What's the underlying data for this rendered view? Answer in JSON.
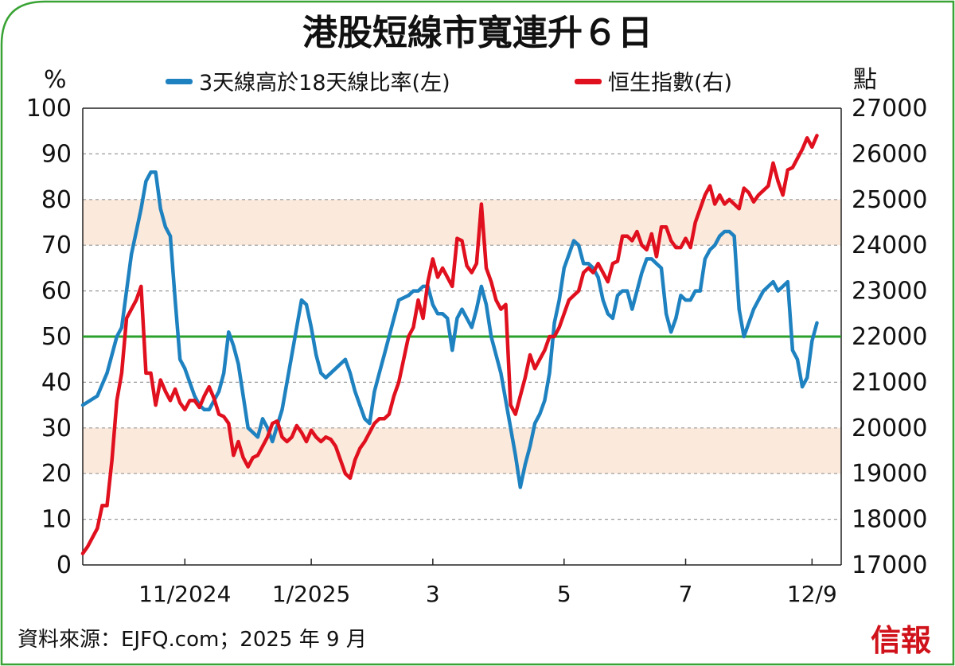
{
  "chart_data": {
    "type": "line",
    "title": "港股短線市寬連升６日",
    "left_axis": {
      "unit": "%",
      "ylim": [
        0,
        100
      ],
      "ticks": [
        "0",
        "10",
        "20",
        "30",
        "40",
        "50",
        "60",
        "70",
        "80",
        "90",
        "100"
      ]
    },
    "right_axis": {
      "unit": "點",
      "ylim": [
        17000,
        27000
      ],
      "ticks": [
        "17000",
        "18000",
        "19000",
        "20000",
        "21000",
        "22000",
        "23000",
        "24000",
        "25000",
        "26000",
        "27000"
      ]
    },
    "x_tick_labels": [
      "11/2024",
      "1/2025",
      "3",
      "5",
      "7",
      "12/9"
    ],
    "legend": {
      "placement": "top",
      "entries": [
        "3天線高於18天線比率(左)",
        "恒生指數(右)"
      ]
    },
    "reference_line": {
      "value": 50,
      "axis": "left",
      "color": "#2ca02c"
    },
    "shaded_bands": [
      {
        "from": 20,
        "to": 30
      },
      {
        "from": 70,
        "to": 80
      }
    ],
    "grid": true,
    "series": [
      {
        "name": "3天線高於18天線比率(左)",
        "axis": "left",
        "color": "#1f82c0",
        "values": [
          [
            0,
            35
          ],
          [
            3,
            37
          ],
          [
            5,
            42
          ],
          [
            7,
            50
          ],
          [
            8,
            52
          ],
          [
            10,
            68
          ],
          [
            12,
            78
          ],
          [
            13,
            84
          ],
          [
            14,
            86
          ],
          [
            15,
            86
          ],
          [
            16,
            78
          ],
          [
            17,
            74
          ],
          [
            18,
            72
          ],
          [
            19,
            58
          ],
          [
            20,
            45
          ],
          [
            21,
            43
          ],
          [
            23,
            37
          ],
          [
            24,
            35
          ],
          [
            25,
            34
          ],
          [
            26,
            34
          ],
          [
            28,
            38
          ],
          [
            29,
            42
          ],
          [
            30,
            51
          ],
          [
            31,
            48
          ],
          [
            32,
            44
          ],
          [
            34,
            30
          ],
          [
            36,
            28
          ],
          [
            37,
            32
          ],
          [
            38,
            30
          ],
          [
            39,
            27
          ],
          [
            41,
            34
          ],
          [
            42,
            40
          ],
          [
            43,
            46
          ],
          [
            44,
            52
          ],
          [
            45,
            58
          ],
          [
            46,
            57
          ],
          [
            47,
            52
          ],
          [
            48,
            46
          ],
          [
            49,
            42
          ],
          [
            50,
            41
          ],
          [
            52,
            43
          ],
          [
            54,
            45
          ],
          [
            55,
            42
          ],
          [
            56,
            38
          ],
          [
            57,
            35
          ],
          [
            58,
            32
          ],
          [
            59,
            31
          ],
          [
            60,
            38
          ],
          [
            61,
            42
          ],
          [
            62,
            46
          ],
          [
            63,
            50
          ],
          [
            64,
            54
          ],
          [
            65,
            58
          ],
          [
            67,
            59
          ],
          [
            68,
            60
          ],
          [
            69,
            60
          ],
          [
            70,
            61
          ],
          [
            71,
            61
          ],
          [
            72,
            57
          ],
          [
            73,
            55
          ],
          [
            74,
            55
          ],
          [
            75,
            54
          ],
          [
            76,
            47
          ],
          [
            77,
            54
          ],
          [
            78,
            56
          ],
          [
            79,
            54
          ],
          [
            80,
            52
          ],
          [
            81,
            56
          ],
          [
            82,
            61
          ],
          [
            83,
            57
          ],
          [
            84,
            50
          ],
          [
            85,
            46
          ],
          [
            86,
            42
          ],
          [
            87,
            36
          ],
          [
            88,
            30
          ],
          [
            89,
            24
          ],
          [
            90,
            17
          ],
          [
            91,
            22
          ],
          [
            92,
            26
          ],
          [
            93,
            31
          ],
          [
            94,
            33
          ],
          [
            95,
            36
          ],
          [
            96,
            42
          ],
          [
            97,
            53
          ],
          [
            98,
            58
          ],
          [
            99,
            65
          ],
          [
            100,
            68
          ],
          [
            101,
            71
          ],
          [
            102,
            70
          ],
          [
            103,
            66
          ],
          [
            104,
            66
          ],
          [
            105,
            65
          ],
          [
            106,
            63
          ],
          [
            107,
            58
          ],
          [
            108,
            55
          ],
          [
            109,
            54
          ],
          [
            110,
            59
          ],
          [
            111,
            60
          ],
          [
            112,
            60
          ],
          [
            113,
            56
          ],
          [
            114,
            60
          ],
          [
            115,
            64
          ],
          [
            116,
            67
          ],
          [
            117,
            67
          ],
          [
            118,
            66
          ],
          [
            119,
            65
          ],
          [
            120,
            55
          ],
          [
            121,
            51
          ],
          [
            122,
            54
          ],
          [
            123,
            59
          ],
          [
            124,
            58
          ],
          [
            125,
            58
          ],
          [
            126,
            60
          ],
          [
            127,
            60
          ],
          [
            128,
            67
          ],
          [
            129,
            69
          ],
          [
            130,
            70
          ],
          [
            131,
            72
          ],
          [
            132,
            73
          ],
          [
            133,
            73
          ],
          [
            134,
            72
          ],
          [
            135,
            56
          ],
          [
            136,
            50
          ],
          [
            137,
            53
          ],
          [
            138,
            56
          ],
          [
            139,
            58
          ],
          [
            140,
            60
          ],
          [
            141,
            61
          ],
          [
            142,
            62
          ],
          [
            143,
            60
          ],
          [
            144,
            61
          ],
          [
            145,
            62
          ],
          [
            146,
            47
          ],
          [
            147,
            45
          ],
          [
            148,
            39
          ],
          [
            149,
            41
          ],
          [
            150,
            49
          ],
          [
            151,
            53
          ]
        ]
      },
      {
        "name": "恒生指數(右)",
        "axis": "right",
        "color": "#e0101e",
        "values": [
          [
            0,
            17250
          ],
          [
            1,
            17400
          ],
          [
            3,
            17800
          ],
          [
            4,
            18300
          ],
          [
            5,
            18300
          ],
          [
            6,
            19300
          ],
          [
            7,
            20600
          ],
          [
            8,
            21200
          ],
          [
            9,
            22400
          ],
          [
            10,
            22600
          ],
          [
            11,
            22800
          ],
          [
            12,
            23100
          ],
          [
            13,
            21200
          ],
          [
            14,
            21200
          ],
          [
            15,
            20500
          ],
          [
            16,
            21050
          ],
          [
            17,
            20800
          ],
          [
            18,
            20600
          ],
          [
            19,
            20850
          ],
          [
            20,
            20550
          ],
          [
            21,
            20400
          ],
          [
            22,
            20600
          ],
          [
            23,
            20600
          ],
          [
            24,
            20450
          ],
          [
            25,
            20700
          ],
          [
            26,
            20900
          ],
          [
            27,
            20650
          ],
          [
            28,
            20300
          ],
          [
            29,
            20250
          ],
          [
            30,
            20100
          ],
          [
            31,
            19400
          ],
          [
            32,
            19700
          ],
          [
            33,
            19350
          ],
          [
            34,
            19150
          ],
          [
            35,
            19350
          ],
          [
            36,
            19400
          ],
          [
            37,
            19600
          ],
          [
            38,
            19800
          ],
          [
            39,
            20100
          ],
          [
            40,
            20150
          ],
          [
            41,
            19800
          ],
          [
            42,
            19700
          ],
          [
            43,
            19800
          ],
          [
            44,
            20050
          ],
          [
            45,
            19900
          ],
          [
            46,
            19700
          ],
          [
            47,
            19950
          ],
          [
            48,
            19800
          ],
          [
            49,
            19700
          ],
          [
            50,
            19800
          ],
          [
            51,
            19750
          ],
          [
            52,
            19600
          ],
          [
            53,
            19300
          ],
          [
            54,
            19000
          ],
          [
            55,
            18900
          ],
          [
            56,
            19300
          ],
          [
            57,
            19550
          ],
          [
            58,
            19700
          ],
          [
            59,
            19900
          ],
          [
            60,
            20100
          ],
          [
            61,
            20200
          ],
          [
            62,
            20200
          ],
          [
            63,
            20300
          ],
          [
            64,
            20700
          ],
          [
            65,
            21000
          ],
          [
            66,
            21500
          ],
          [
            67,
            22000
          ],
          [
            68,
            22200
          ],
          [
            69,
            22800
          ],
          [
            70,
            22400
          ],
          [
            71,
            23200
          ],
          [
            72,
            23700
          ],
          [
            73,
            23300
          ],
          [
            74,
            23500
          ],
          [
            75,
            23300
          ],
          [
            76,
            23100
          ],
          [
            77,
            24150
          ],
          [
            78,
            24100
          ],
          [
            79,
            23550
          ],
          [
            80,
            23400
          ],
          [
            81,
            23600
          ],
          [
            82,
            24900
          ],
          [
            83,
            23500
          ],
          [
            84,
            23200
          ],
          [
            85,
            22800
          ],
          [
            86,
            22600
          ],
          [
            87,
            22700
          ],
          [
            88,
            20500
          ],
          [
            89,
            20300
          ],
          [
            90,
            20700
          ],
          [
            91,
            21100
          ],
          [
            92,
            21600
          ],
          [
            93,
            21300
          ],
          [
            94,
            21500
          ],
          [
            95,
            21700
          ],
          [
            96,
            22000
          ],
          [
            97,
            22000
          ],
          [
            98,
            22200
          ],
          [
            99,
            22500
          ],
          [
            100,
            22800
          ],
          [
            101,
            22900
          ],
          [
            102,
            23000
          ],
          [
            103,
            23400
          ],
          [
            104,
            23500
          ],
          [
            105,
            23400
          ],
          [
            106,
            23600
          ],
          [
            107,
            23400
          ],
          [
            108,
            23200
          ],
          [
            109,
            23600
          ],
          [
            110,
            23650
          ],
          [
            111,
            24200
          ],
          [
            112,
            24200
          ],
          [
            113,
            24100
          ],
          [
            114,
            24300
          ],
          [
            115,
            24000
          ],
          [
            116,
            23900
          ],
          [
            117,
            24250
          ],
          [
            118,
            23750
          ],
          [
            119,
            24400
          ],
          [
            120,
            24400
          ],
          [
            121,
            24100
          ],
          [
            122,
            23950
          ],
          [
            123,
            23950
          ],
          [
            124,
            24150
          ],
          [
            125,
            23950
          ],
          [
            126,
            24500
          ],
          [
            127,
            24800
          ],
          [
            128,
            25100
          ],
          [
            129,
            25300
          ],
          [
            130,
            24900
          ],
          [
            131,
            25100
          ],
          [
            132,
            24900
          ],
          [
            133,
            25000
          ],
          [
            134,
            24900
          ],
          [
            135,
            24800
          ],
          [
            136,
            25250
          ],
          [
            137,
            25150
          ],
          [
            138,
            24950
          ],
          [
            139,
            25100
          ],
          [
            140,
            25200
          ],
          [
            141,
            25300
          ],
          [
            142,
            25800
          ],
          [
            143,
            25400
          ],
          [
            144,
            25100
          ],
          [
            145,
            25650
          ],
          [
            146,
            25700
          ],
          [
            147,
            25900
          ],
          [
            148,
            26100
          ],
          [
            149,
            26350
          ],
          [
            150,
            26150
          ],
          [
            151,
            26400
          ]
        ]
      }
    ]
  },
  "source_note": "資料來源：EJFQ.com；2025 年 9 月",
  "brand": "信報",
  "colors": {
    "frame": "#3aa335",
    "band": "#fbe9db",
    "ref_line": "#2ca02c",
    "blue": "#1f82c0",
    "red": "#e0101e"
  }
}
